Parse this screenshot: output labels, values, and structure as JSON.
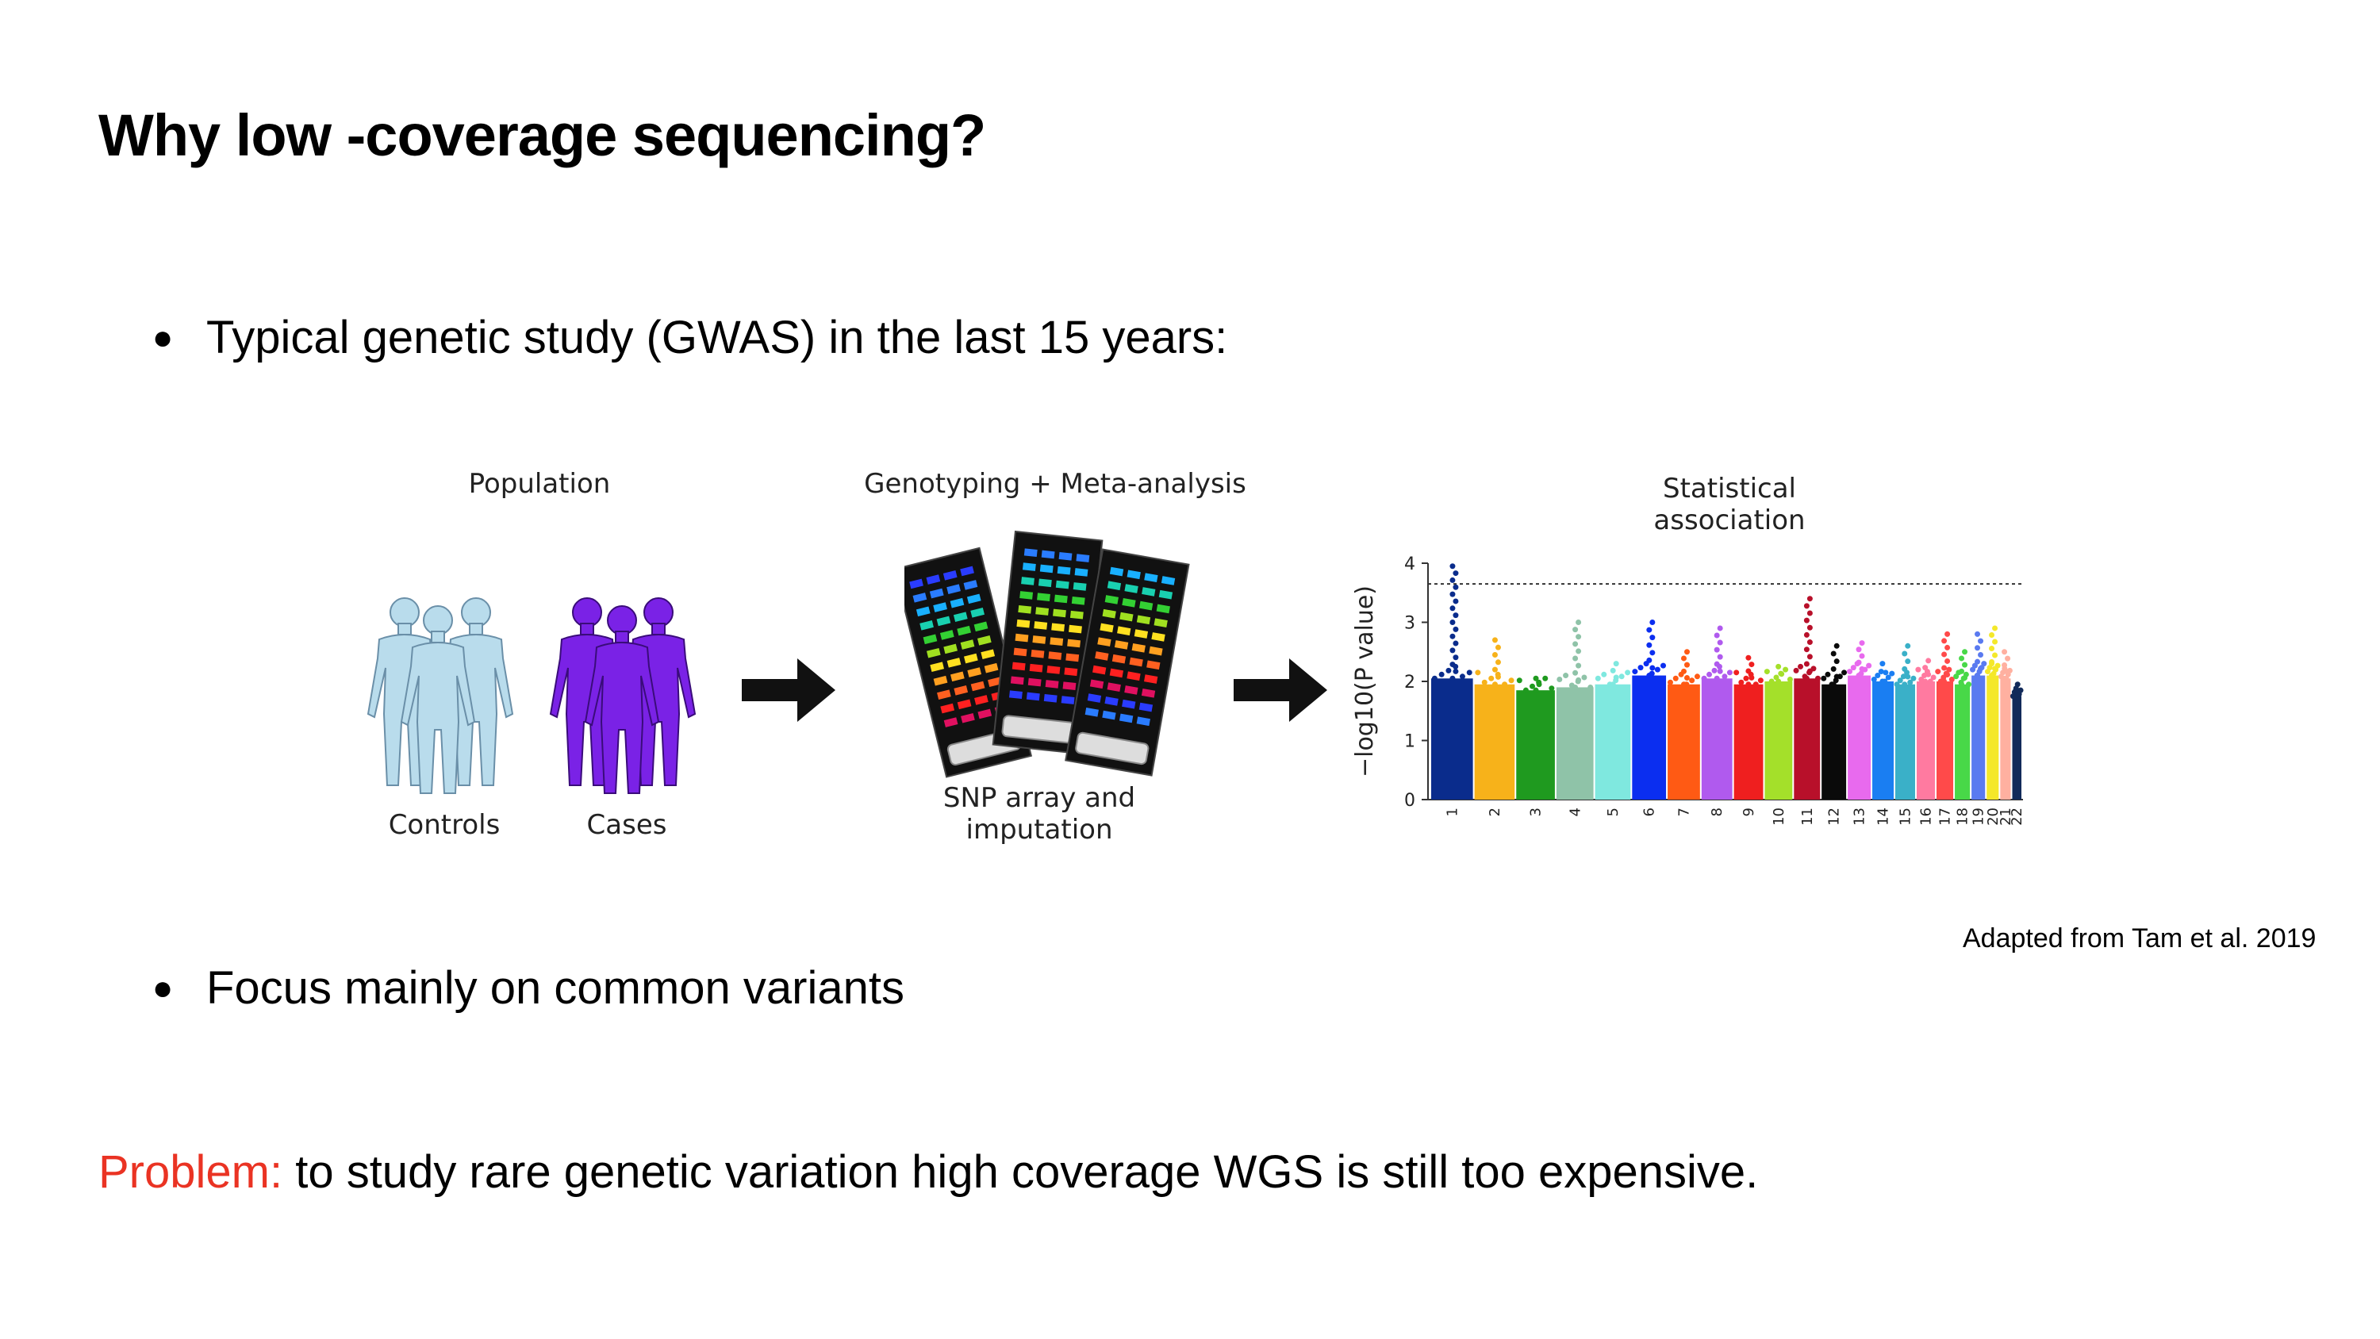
{
  "slide": {
    "title": "Why low -coverage sequencing?",
    "bullet_1": "Typical genetic study (GWAS) in the last 15 years:",
    "bullet_2": "Focus mainly on common variants",
    "problem_label": "Problem:",
    "problem_text": " to study rare genetic variation high coverage WGS is still too expensive.",
    "caption": "Adapted from Tam et al. 2019",
    "bullet_glyph": "●"
  },
  "figure": {
    "stage_1": {
      "heading": "Population",
      "controls_label": "Controls",
      "cases_label": "Cases",
      "controls_color": "#b9dcec",
      "cases_color": "#7a22e6"
    },
    "stage_2": {
      "heading": "Genotyping + Meta-analysis",
      "caption_line_1": "SNP array and",
      "caption_line_2": "imputation"
    },
    "stage_3": {
      "heading_line_1": "Statistical",
      "heading_line_2": "association"
    }
  },
  "chart_data": {
    "type": "scatter",
    "subtype": "manhattan",
    "title": "",
    "xlabel": "",
    "ylabel": "−log10(P value)",
    "ylim": [
      0,
      4
    ],
    "yticks": [
      0,
      1,
      2,
      3,
      4
    ],
    "threshold": 3.65,
    "grid": false,
    "categories": [
      "1",
      "2",
      "3",
      "4",
      "5",
      "6",
      "7",
      "8",
      "9",
      "10",
      "11",
      "12",
      "13",
      "14",
      "15",
      "16",
      "17",
      "18",
      "19",
      "20",
      "21",
      "22"
    ],
    "band_top": [
      2.05,
      1.95,
      1.85,
      1.9,
      1.95,
      2.1,
      1.95,
      2.05,
      1.95,
      2.0,
      2.05,
      1.95,
      2.1,
      2.0,
      1.95,
      2.0,
      2.0,
      1.95,
      2.1,
      2.1,
      2.05,
      1.75
    ],
    "peak": [
      3.95,
      2.7,
      2.05,
      3.0,
      2.3,
      3.0,
      2.5,
      2.9,
      2.4,
      2.25,
      3.4,
      2.6,
      2.65,
      2.3,
      2.6,
      2.35,
      2.8,
      2.5,
      2.8,
      2.9,
      2.5,
      1.85
    ],
    "colors": [
      "#0a2c8c",
      "#f7b21a",
      "#1f9a1f",
      "#8fc3a8",
      "#7fe8df",
      "#0b2ef0",
      "#ff5a14",
      "#b05aee",
      "#ef1f1f",
      "#a4e02a",
      "#b8102a",
      "#0a0a0a",
      "#e86aee",
      "#1a7ef2",
      "#3ab0c8",
      "#ff7aa0",
      "#ff4a4a",
      "#48d848",
      "#5a7af0",
      "#f4e82a",
      "#ffb0a0",
      "#122a5a"
    ]
  }
}
